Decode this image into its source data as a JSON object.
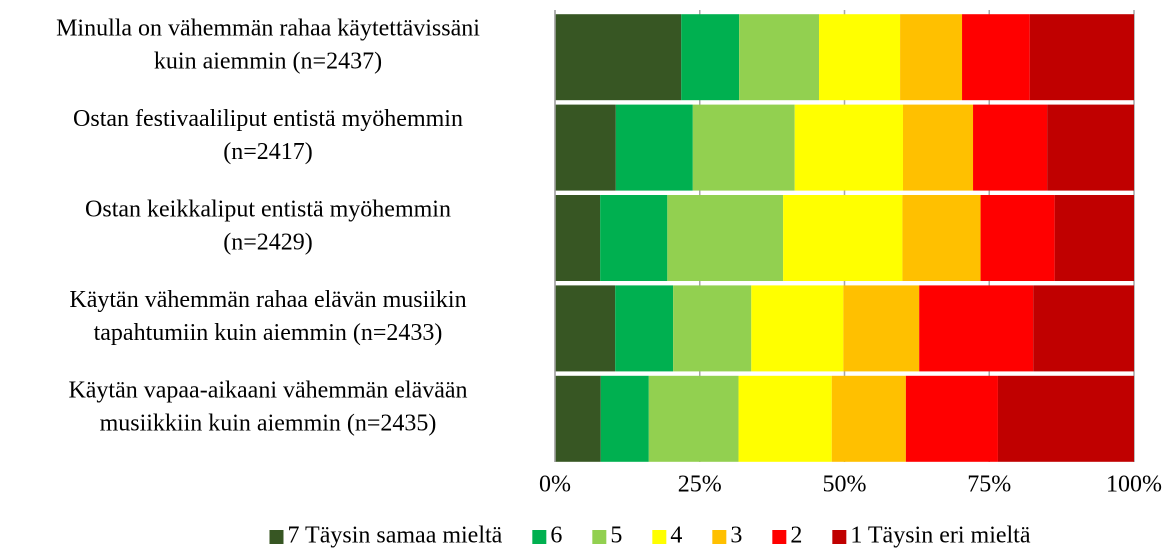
{
  "chart_data": {
    "type": "stacked-bar-horizontal",
    "categories": [
      [
        "Minulla on vähemmän rahaa käytettävissäni",
        "kuin aiemmin (n=2437)"
      ],
      [
        "Ostan festivaaliliput entistä myöhemmin",
        "(n=2417)"
      ],
      [
        "Ostan keikkaliput entistä myöhemmin",
        "(n=2429)"
      ],
      [
        "Käytän vähemmän rahaa elävän musiikin",
        "tapahtumiin kuin aiemmin (n=2433)"
      ],
      [
        "Käytän vapaa-aikaani vähemmän elävään",
        "musiikkiin kuin aiemmin (n=2435)"
      ]
    ],
    "series": [
      {
        "name": "7 Täysin samaa mieltä",
        "color": "#375623",
        "values": [
          21.8,
          10.5,
          7.8,
          10.4,
          7.9
        ]
      },
      {
        "name": "6",
        "color": "#00b050",
        "values": [
          10.0,
          13.3,
          11.6,
          10.0,
          8.3
        ]
      },
      {
        "name": "5",
        "color": "#92d050",
        "values": [
          13.8,
          17.6,
          20.0,
          13.5,
          15.5
        ]
      },
      {
        "name": "4",
        "color": "#ffff00",
        "values": [
          14.0,
          18.7,
          20.6,
          15.9,
          16.1
        ]
      },
      {
        "name": "3",
        "color": "#ffc000",
        "values": [
          10.7,
          12.1,
          13.5,
          13.1,
          12.8
        ]
      },
      {
        "name": "2",
        "color": "#ff0000",
        "values": [
          11.7,
          12.8,
          12.8,
          19.7,
          15.9
        ]
      },
      {
        "name": "1 Täysin eri mieltä",
        "color": "#c00000",
        "values": [
          18.0,
          15.0,
          13.7,
          17.4,
          23.5
        ]
      }
    ],
    "xlim": [
      0,
      100
    ],
    "xticks": [
      {
        "value": 0,
        "label": "0%"
      },
      {
        "value": 25,
        "label": "25%"
      },
      {
        "value": 50,
        "label": "50%"
      },
      {
        "value": 75,
        "label": "75%"
      },
      {
        "value": 100,
        "label": "100%"
      }
    ],
    "grid": true,
    "legend": "bottom"
  }
}
